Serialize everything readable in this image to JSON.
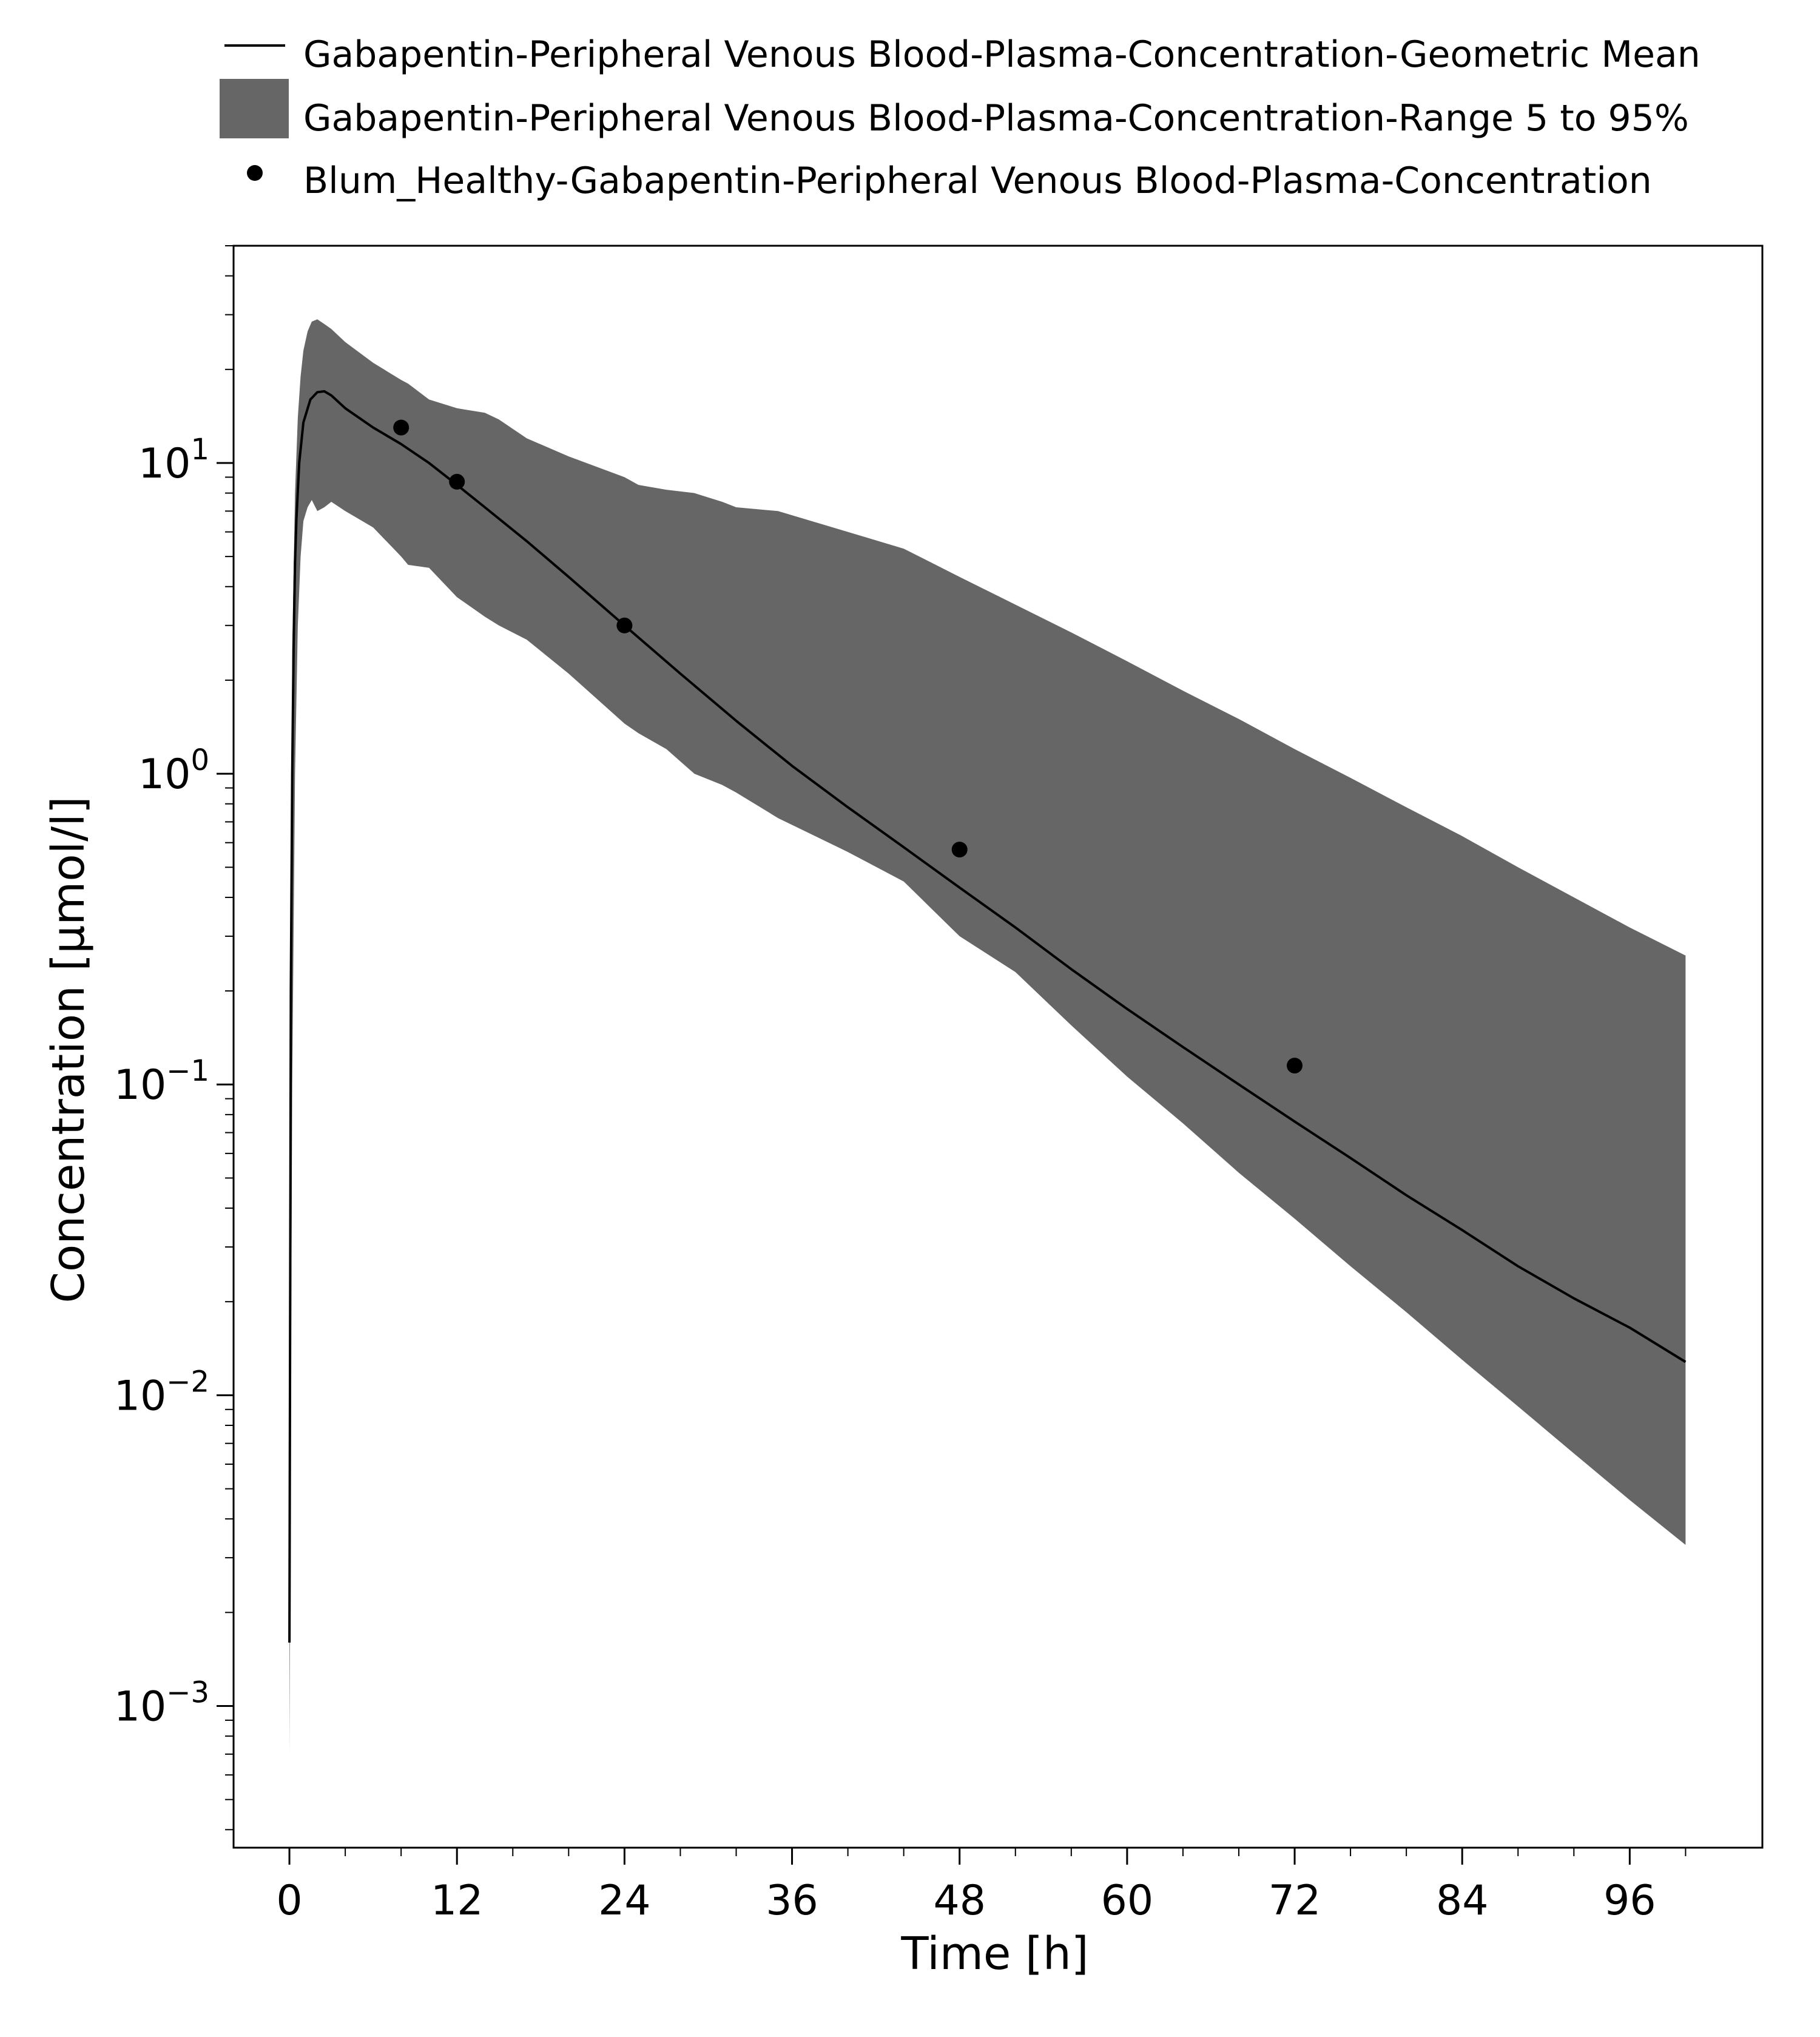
{
  "chart_data": {
    "type": "line",
    "title": "",
    "xlabel": "Time [h]",
    "ylabel": "Concentration [µmol/l]",
    "x_scale": "linear",
    "y_scale": "log",
    "xlim": [
      -4,
      105.5
    ],
    "ylim": [
      0.00035,
      50
    ],
    "x_ticks": [
      0,
      12,
      24,
      36,
      48,
      60,
      72,
      84,
      96
    ],
    "x_tick_labels": [
      "0",
      "12",
      "24",
      "36",
      "48",
      "60",
      "72",
      "84",
      "96"
    ],
    "y_ticks": [
      {
        "value": 0.001,
        "base": "10",
        "exp": "−3"
      },
      {
        "value": 0.01,
        "base": "10",
        "exp": "−2"
      },
      {
        "value": 0.1,
        "base": "10",
        "exp": "−1"
      },
      {
        "value": 1,
        "base": "10",
        "exp": "0"
      },
      {
        "value": 10,
        "base": "10",
        "exp": "1"
      }
    ],
    "grid": false,
    "legend_position": "top",
    "legend": [
      {
        "label": "Gabapentin-Peripheral Venous Blood-Plasma-Concentration-Geometric Mean",
        "marker": "line"
      },
      {
        "label": "Gabapentin-Peripheral Venous Blood-Plasma-Concentration-Range 5 to 95%",
        "marker": "area"
      },
      {
        "label": "Blum_Healthy-Gabapentin-Peripheral Venous Blood-Plasma-Concentration",
        "marker": "dot"
      }
    ],
    "series": [
      {
        "name": "Gabapentin-Peripheral Venous Blood-Plasma-Concentration-Geometric Mean",
        "kind": "line",
        "color": "#000000",
        "x": [
          0,
          0.1,
          0.2,
          0.3,
          0.4,
          0.5,
          0.7,
          1,
          1.5,
          2,
          2.5,
          3,
          4,
          6,
          8,
          10,
          12,
          14,
          17,
          20,
          24,
          28,
          32,
          36,
          40,
          44,
          48,
          52,
          56,
          60,
          64,
          68,
          72,
          76,
          80,
          84,
          88,
          92,
          96,
          100
        ],
        "y": [
          0.0016,
          0.2,
          1.0,
          2.6,
          4.8,
          6.6,
          10.0,
          13.5,
          16.0,
          16.9,
          17.0,
          16.5,
          15.0,
          13.0,
          11.5,
          10.0,
          8.5,
          7.2,
          5.6,
          4.3,
          3.0,
          2.1,
          1.48,
          1.06,
          0.78,
          0.58,
          0.43,
          0.32,
          0.235,
          0.175,
          0.132,
          0.1,
          0.076,
          0.058,
          0.044,
          0.034,
          0.026,
          0.0205,
          0.0165,
          0.0128
        ]
      },
      {
        "name": "Gabapentin-Peripheral Venous Blood-Plasma-Concentration-Range 5 to 95%",
        "kind": "band",
        "color": "#666666",
        "x": [
          0,
          0.2,
          0.4,
          0.6,
          0.8,
          1,
          1.3,
          1.6,
          2,
          2.5,
          3,
          4,
          6,
          8,
          8.5,
          10,
          12,
          14,
          15,
          17,
          20,
          24,
          25,
          27,
          29,
          31,
          32,
          35,
          40,
          44,
          48,
          52,
          56,
          60,
          64,
          68,
          72,
          76,
          80,
          84,
          88,
          92,
          96,
          100
        ],
        "upper": [
          0.0016,
          2.5,
          8.0,
          14.0,
          19.0,
          23.0,
          26.5,
          28.5,
          29.0,
          28.0,
          27.0,
          24.5,
          21.0,
          18.5,
          18.0,
          16.0,
          15.0,
          14.5,
          13.8,
          12.0,
          10.5,
          9.0,
          8.5,
          8.2,
          8.0,
          7.5,
          7.2,
          7.0,
          6.0,
          5.3,
          4.3,
          3.5,
          2.85,
          2.3,
          1.85,
          1.5,
          1.2,
          0.97,
          0.78,
          0.63,
          0.5,
          0.4,
          0.32,
          0.26
        ],
        "lower": [
          0.0007,
          0.1,
          1.0,
          3.0,
          5.0,
          6.5,
          7.2,
          7.6,
          7.0,
          7.2,
          7.5,
          7.0,
          6.2,
          5.0,
          4.7,
          4.6,
          3.7,
          3.2,
          3.0,
          2.7,
          2.1,
          1.45,
          1.35,
          1.2,
          1.0,
          0.92,
          0.87,
          0.72,
          0.56,
          0.45,
          0.3,
          0.23,
          0.155,
          0.106,
          0.075,
          0.052,
          0.037,
          0.026,
          0.0185,
          0.013,
          0.0092,
          0.0065,
          0.0046,
          0.0033
        ]
      },
      {
        "name": "Blum_Healthy-Gabapentin-Peripheral Venous Blood-Plasma-Concentration",
        "kind": "scatter",
        "color": "#000000",
        "x": [
          8,
          12,
          24,
          48,
          72
        ],
        "y": [
          13.0,
          8.7,
          3.0,
          0.57,
          0.115
        ]
      }
    ]
  }
}
